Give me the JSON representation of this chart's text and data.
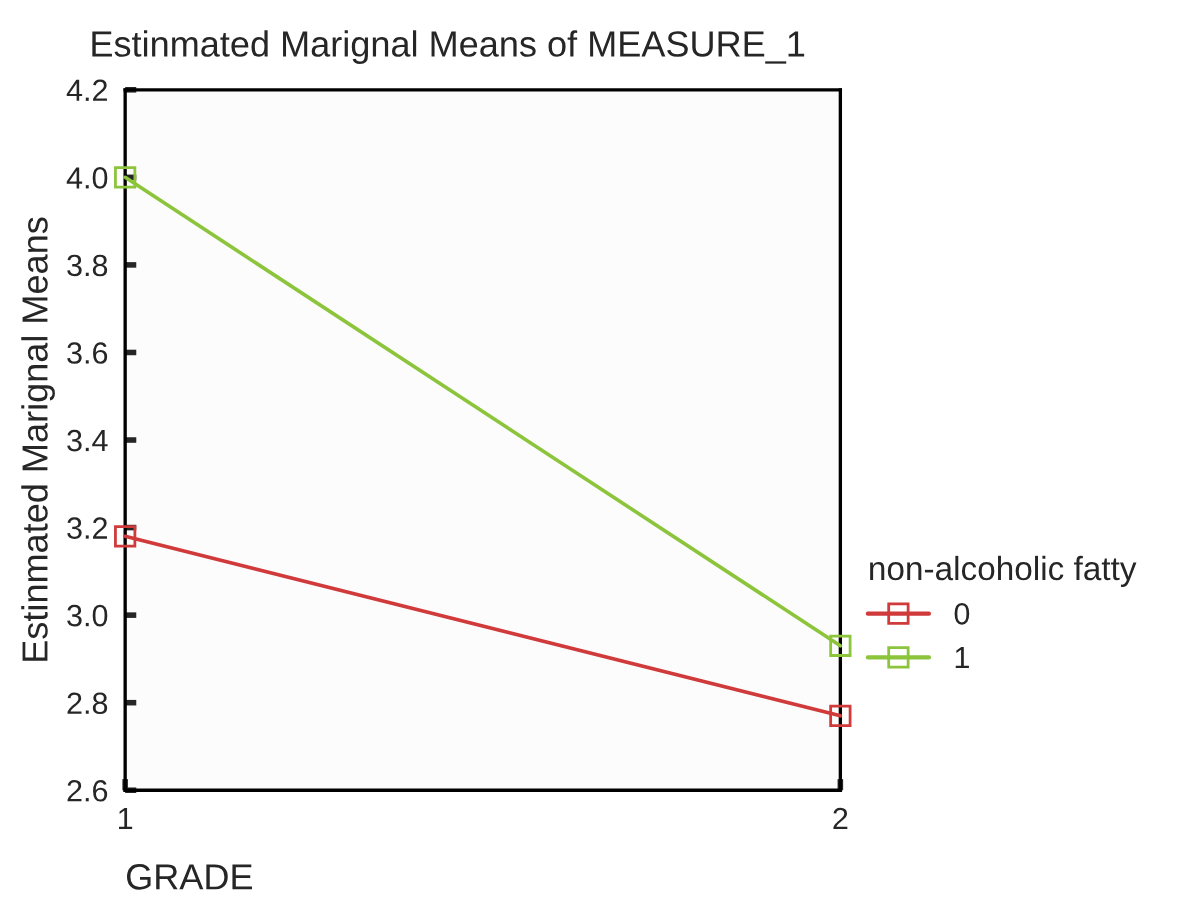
{
  "chart_data": {
    "type": "line",
    "title": "Estinmated Marignal Means of MEASURE_1",
    "xlabel": "GRADE",
    "ylabel": "Estinmated Marignal Means",
    "legend_title": "non-alcoholic fatty",
    "x": [
      1,
      2
    ],
    "xlim": [
      1,
      2
    ],
    "xticks": [
      1,
      2
    ],
    "ylim": [
      2.6,
      4.2
    ],
    "yticks": [
      2.6,
      2.8,
      {
        "value": 3,
        "label": "3.0"
      },
      3.2,
      3.4,
      3.6,
      3.8,
      {
        "value": 4,
        "label": "4.0"
      },
      4.2
    ],
    "series": [
      {
        "name": "0",
        "color": "#d03a3a",
        "values": [
          3.18,
          2.77
        ]
      },
      {
        "name": "1",
        "color": "#8cc43c",
        "values": [
          4.0,
          2.93
        ]
      }
    ],
    "marker": "square",
    "line_style": "solid",
    "grid": false,
    "legend": "right"
  }
}
